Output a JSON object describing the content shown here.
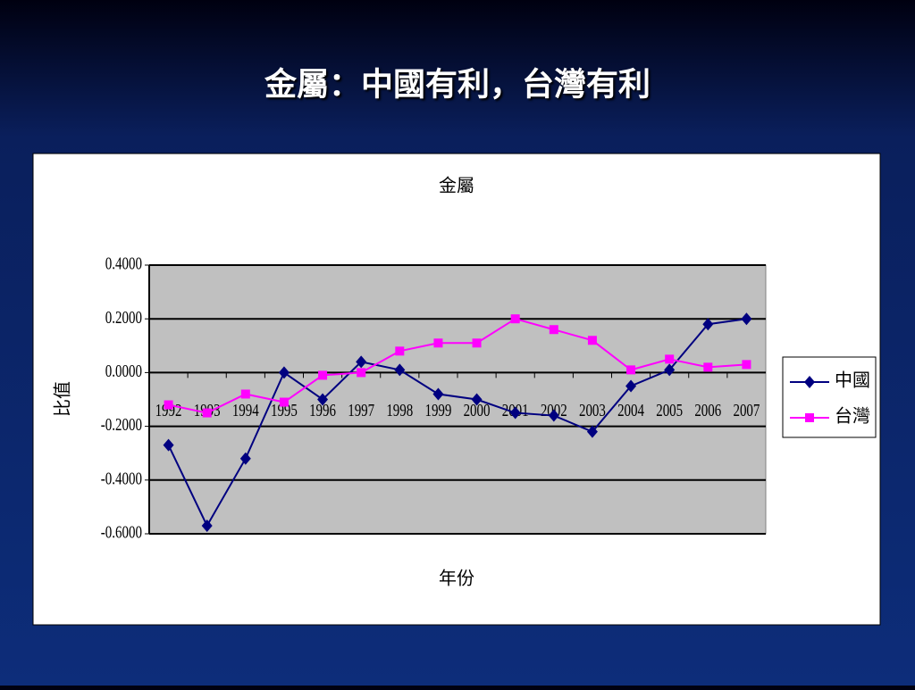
{
  "slide_title": "金屬：中國有利，台灣有利",
  "chart_data": {
    "type": "line",
    "title": "金屬",
    "x_label": "年份",
    "y_label": "比值",
    "categories": [
      "1992",
      "1993",
      "1994",
      "1995",
      "1996",
      "1997",
      "1998",
      "1999",
      "2000",
      "2001",
      "2002",
      "2003",
      "2004",
      "2005",
      "2006",
      "2007"
    ],
    "series": [
      {
        "name": "中國",
        "color": "#000080",
        "marker": "diamond",
        "values": [
          -0.27,
          -0.57,
          -0.32,
          0.0,
          -0.1,
          0.04,
          0.01,
          -0.08,
          -0.1,
          -0.15,
          -0.16,
          -0.22,
          -0.05,
          0.01,
          0.18,
          0.2
        ]
      },
      {
        "name": "台灣",
        "color": "#ff00ff",
        "marker": "square",
        "values": [
          -0.12,
          -0.15,
          -0.08,
          -0.11,
          -0.01,
          0.0,
          0.08,
          0.11,
          0.11,
          0.2,
          0.16,
          0.12,
          0.01,
          0.05,
          0.02,
          0.03
        ]
      }
    ],
    "ylim": [
      -0.6,
      0.4
    ],
    "yticks": [
      {
        "value": -0.6,
        "label": "-0.6000"
      },
      {
        "value": -0.4,
        "label": "-0.4000"
      },
      {
        "value": -0.2,
        "label": "-0.2000"
      },
      {
        "value": 0,
        "label": "0.0000"
      },
      {
        "value": 0.2,
        "label": "0.2000"
      },
      {
        "value": 0.4,
        "label": "0.4000"
      }
    ],
    "grid": true,
    "legend": "right"
  }
}
